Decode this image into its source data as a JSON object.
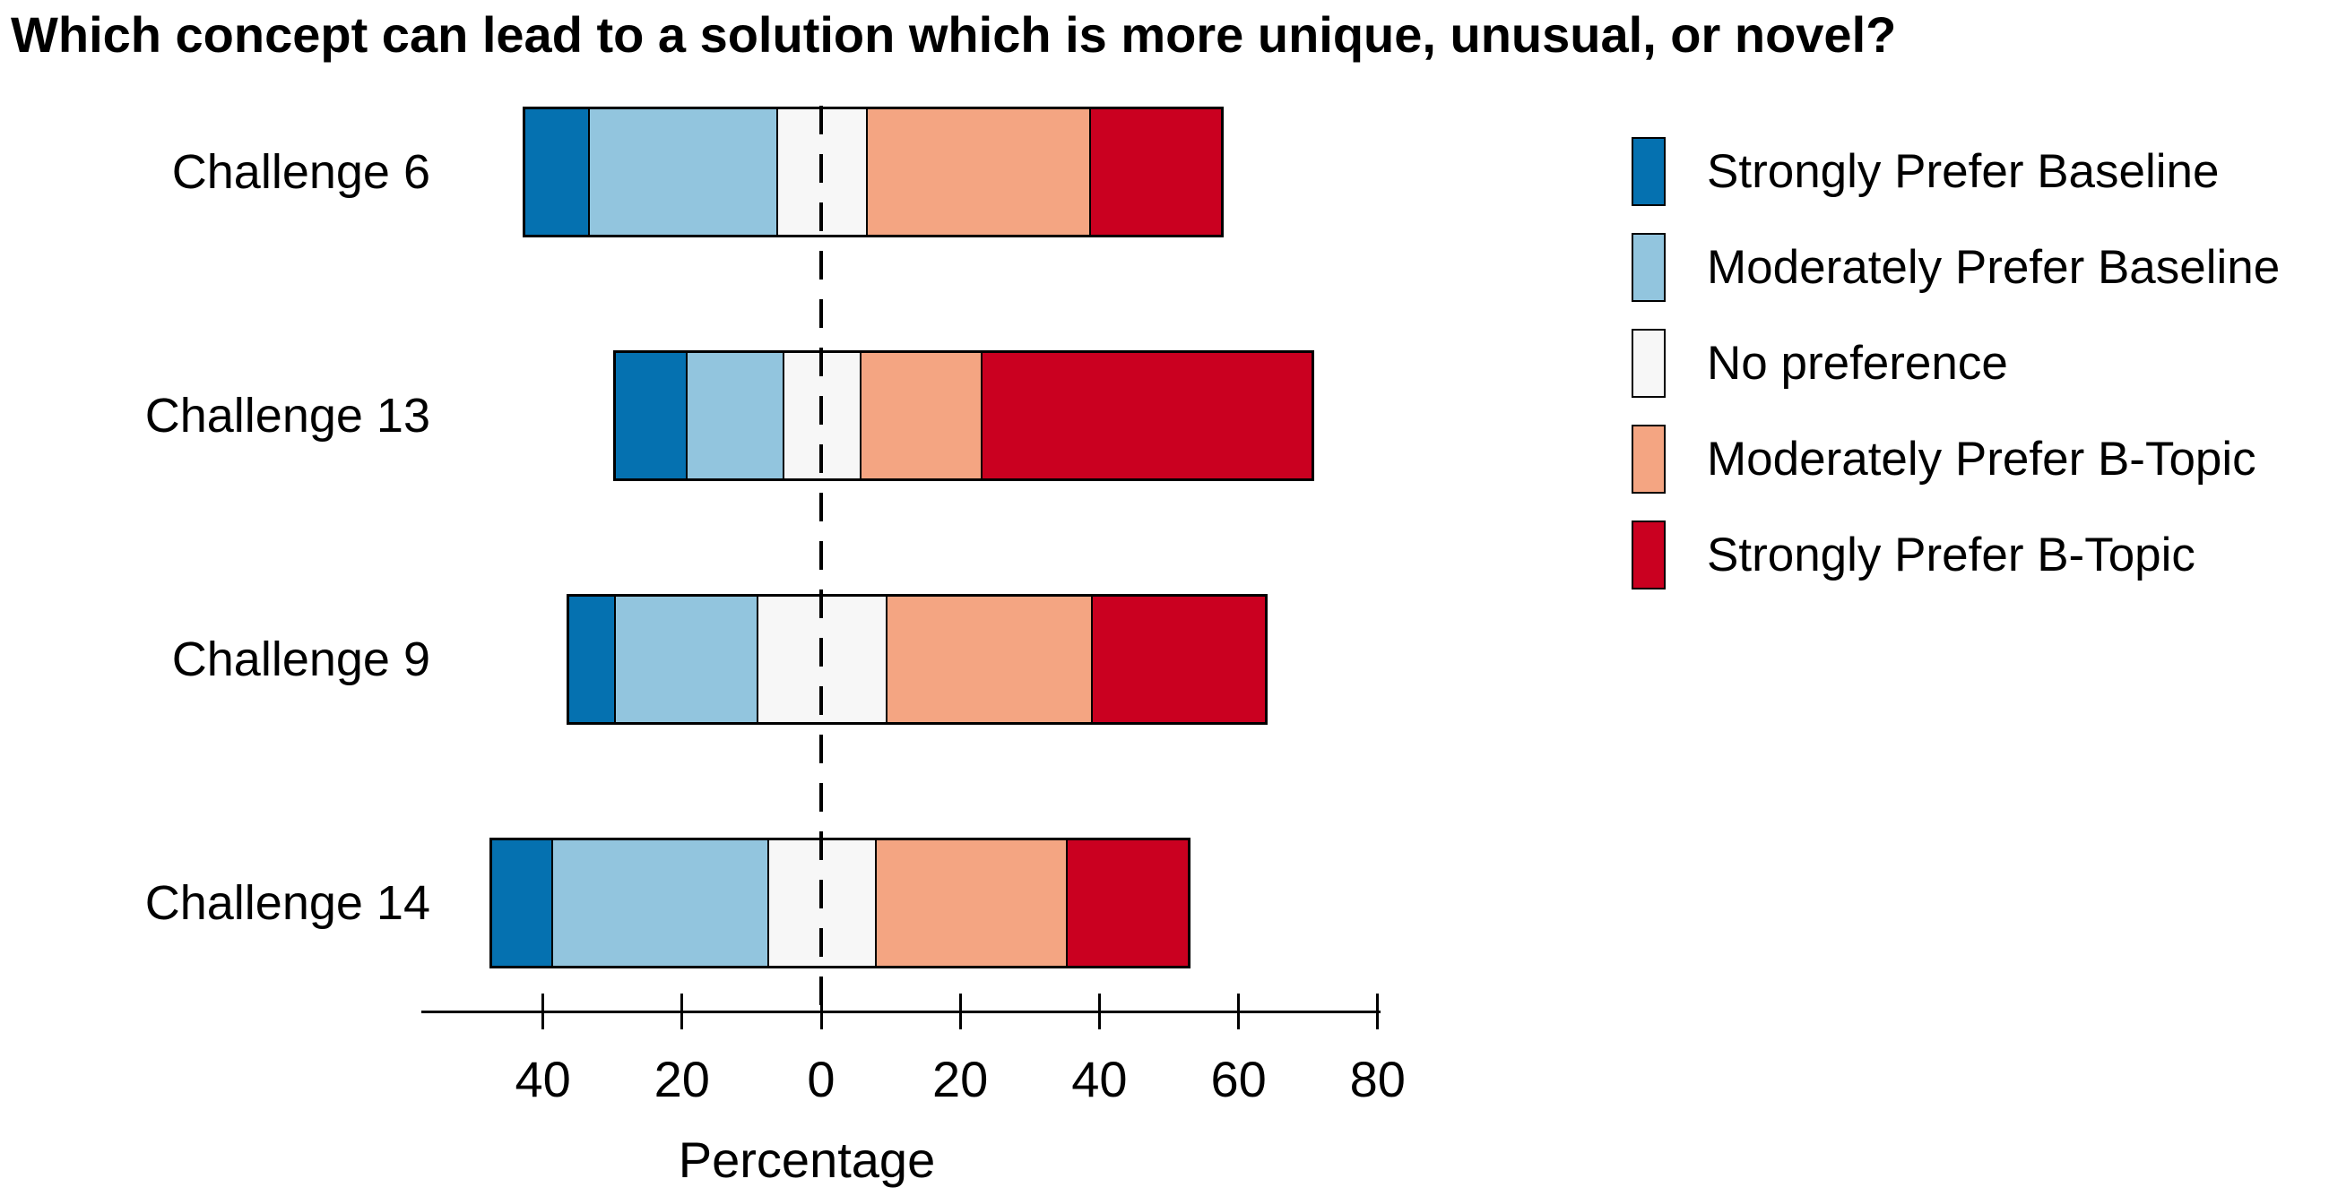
{
  "title": "Which concept can lead to a solution which is more unique, unusual, or novel?",
  "chart_data": {
    "type": "bar",
    "variant": "diverging-stacked-horizontal",
    "title": "Which concept can lead to a solution which is more unique, unusual, or novel?",
    "xlabel": "Percentage",
    "categories": [
      "Challenge 6",
      "Challenge 13",
      "Challenge 9",
      "Challenge 14"
    ],
    "series": [
      {
        "name": "Strongly Prefer Baseline",
        "color": "#0571b0",
        "values": [
          9,
          10,
          6.5,
          8.5
        ]
      },
      {
        "name": "Moderately Prefer Baseline",
        "color": "#92c5de",
        "values": [
          27,
          14,
          20.5,
          31
        ]
      },
      {
        "name": "No preference",
        "color": "#f7f7f7",
        "values": [
          13,
          11,
          18.5,
          15.5
        ]
      },
      {
        "name": "Moderately Prefer B-Topic",
        "color": "#f4a582",
        "values": [
          32,
          17.5,
          29.5,
          27.5
        ]
      },
      {
        "name": "Strongly Prefer B-Topic",
        "color": "#ca0020",
        "values": [
          19,
          47.5,
          25,
          17.5
        ]
      }
    ],
    "alignment": "No preference segment centered on 0; Baseline series extend left, B-Topic series extend right",
    "row_extents_percent": {
      "Challenge 6": {
        "left": -42.5,
        "right": 57.5
      },
      "Challenge 13": {
        "left": -29.5,
        "right": 70.5
      },
      "Challenge 9": {
        "left": -36.25,
        "right": 63.75
      },
      "Challenge 14": {
        "left": -47.25,
        "right": 52.75
      }
    },
    "x_tick_values": [
      -40,
      -20,
      0,
      20,
      40,
      60,
      80
    ],
    "x_tick_labels": [
      "40",
      "20",
      "0",
      "20",
      "40",
      "60",
      "80"
    ],
    "xlim": [
      -57.5,
      80.5
    ],
    "zero_line": "black dashed vertical line at 0",
    "grid": false,
    "legend_position": "right",
    "bar_edge_color": "#000000",
    "background_color": "#ffffff"
  }
}
